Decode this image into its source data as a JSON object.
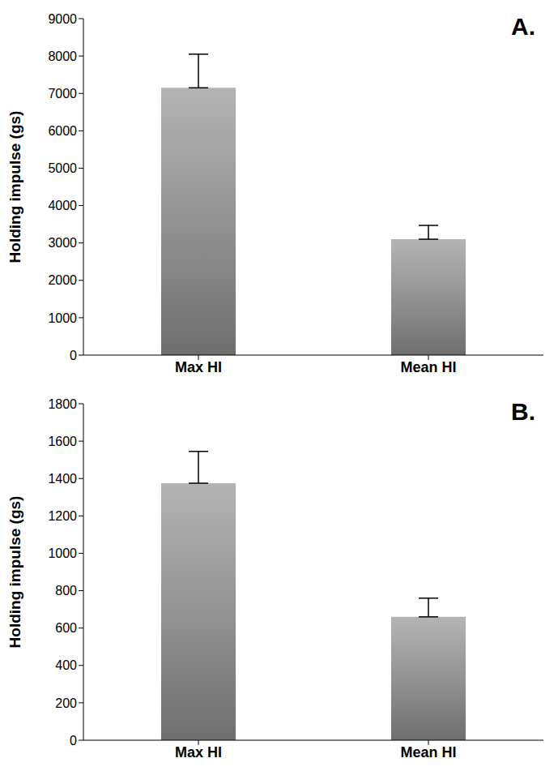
{
  "chart_data": [
    {
      "type": "bar",
      "title": "A.",
      "y_label": "Holding impulse (gs)",
      "categories": [
        "Max HI",
        "Mean HI"
      ],
      "values": [
        7150,
        3100
      ],
      "errors": [
        900,
        370
      ],
      "color": "#a6a6a6",
      "ylim": [
        0,
        9000
      ],
      "yticks": [
        0,
        1000,
        2000,
        3000,
        4000,
        5000,
        6000,
        7000,
        8000,
        9000
      ],
      "grid": false
    },
    {
      "type": "bar",
      "title": "B.",
      "y_label": "Holding impulse (gs)",
      "categories": [
        "Max HI",
        "Mean HI"
      ],
      "values": [
        1375,
        660
      ],
      "errors": [
        170,
        100
      ],
      "color": "#a6a6a6",
      "ylim": [
        0,
        1800
      ],
      "yticks": [
        0,
        200,
        400,
        600,
        800,
        1000,
        1200,
        1400,
        1600,
        1800
      ],
      "grid": false
    }
  ]
}
